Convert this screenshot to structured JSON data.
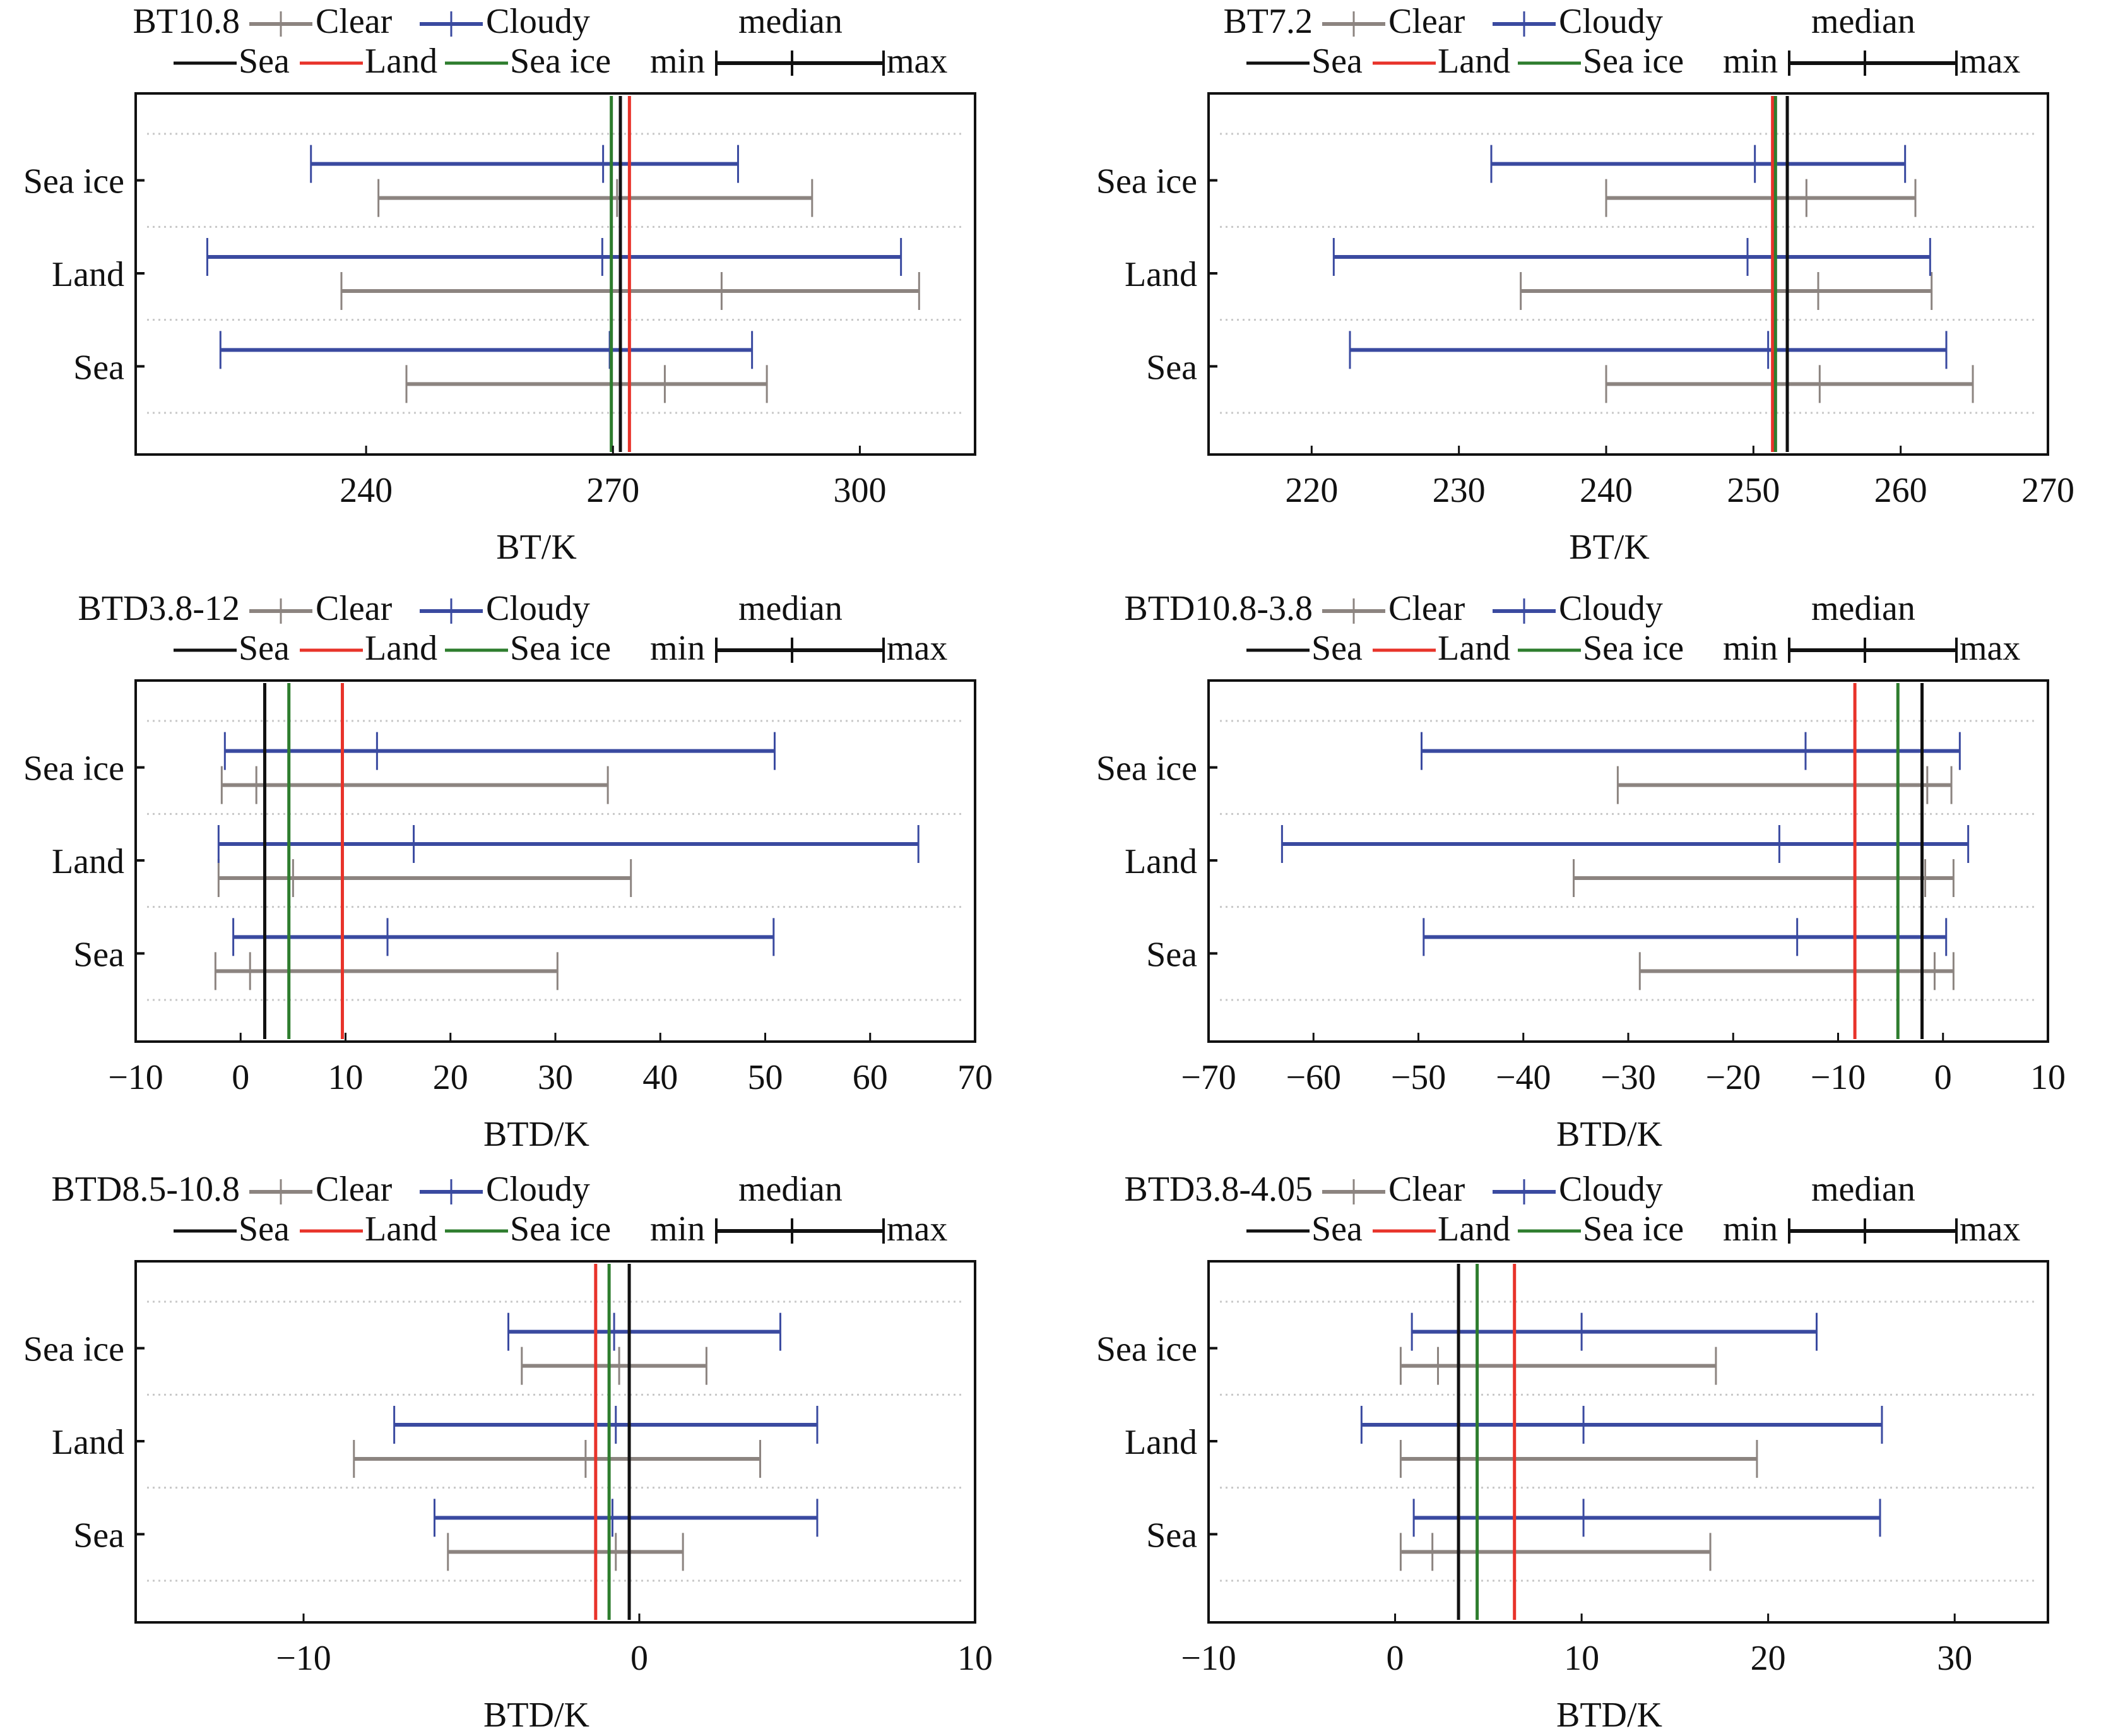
{
  "legend": {
    "clear_label": "Clear",
    "cloudy_label": "Cloudy",
    "median_label": "median",
    "min_label": "min",
    "max_label": "max",
    "sea_label": "Sea",
    "land_label": "Land",
    "seaice_label": "Sea ice"
  },
  "colors": {
    "clear": "#8c8480",
    "cloudy": "#3a4aa0",
    "sea": "#111111",
    "land": "#e8332a",
    "seaice": "#2e7d2e",
    "grid": "#c8c8c8"
  },
  "chart_data": [
    {
      "type": "errorbar",
      "title": "BT10.8",
      "xlabel": "BT/K",
      "ylabel": "",
      "xlim": [
        212,
        314
      ],
      "xticks": [
        240,
        270,
        300
      ],
      "categories": [
        "Sea",
        "Land",
        "Sea ice"
      ],
      "grid": true,
      "legend_position": "top",
      "series": [
        {
          "name": "Clear",
          "min": [
            244.9,
            237.0,
            241.5
          ],
          "median": [
            276.3,
            283.2,
            270.5
          ],
          "max": [
            288.7,
            307.2,
            294.2
          ]
        },
        {
          "name": "Cloudy",
          "min": [
            222.3,
            220.7,
            233.3
          ],
          "median": [
            269.6,
            268.7,
            268.8
          ],
          "max": [
            286.9,
            305.0,
            285.2
          ]
        }
      ],
      "reference_lines": [
        {
          "name": "Sea",
          "value": 270.9
        },
        {
          "name": "Land",
          "value": 272.0
        },
        {
          "name": "Sea ice",
          "value": 269.8
        }
      ]
    },
    {
      "type": "errorbar",
      "title": "BT7.2",
      "xlabel": "BT/K",
      "ylabel": "",
      "xlim": [
        213,
        270
      ],
      "xticks": [
        220,
        230,
        240,
        250,
        260,
        270
      ],
      "categories": [
        "Sea",
        "Land",
        "Sea ice"
      ],
      "grid": true,
      "legend_position": "top",
      "series": [
        {
          "name": "Clear",
          "min": [
            240.0,
            234.2,
            240.0
          ],
          "median": [
            254.5,
            254.4,
            253.6
          ],
          "max": [
            264.9,
            262.1,
            261.0
          ]
        },
        {
          "name": "Cloudy",
          "min": [
            222.6,
            221.5,
            232.2
          ],
          "median": [
            251.0,
            249.6,
            250.1
          ],
          "max": [
            263.1,
            262.0,
            260.3
          ]
        }
      ],
      "reference_lines": [
        {
          "name": "Sea",
          "value": 252.3
        },
        {
          "name": "Land",
          "value": 251.3
        },
        {
          "name": "Sea ice",
          "value": 251.5
        }
      ]
    },
    {
      "type": "errorbar",
      "title": "BTD3.8-12",
      "xlabel": "BTD/K",
      "ylabel": "",
      "xlim": [
        -10,
        70
      ],
      "xticks": [
        -10,
        0,
        10,
        20,
        30,
        40,
        50,
        60,
        70
      ],
      "categories": [
        "Sea",
        "Land",
        "Sea ice"
      ],
      "grid": true,
      "legend_position": "top",
      "series": [
        {
          "name": "Clear",
          "min": [
            -2.4,
            -2.1,
            -1.8
          ],
          "median": [
            0.9,
            5.0,
            1.5
          ],
          "max": [
            30.2,
            37.2,
            35.0
          ]
        },
        {
          "name": "Cloudy",
          "min": [
            -0.7,
            -2.1,
            -1.5
          ],
          "median": [
            14.0,
            16.5,
            13.0
          ],
          "max": [
            50.8,
            64.6,
            50.9
          ]
        }
      ],
      "reference_lines": [
        {
          "name": "Sea",
          "value": 2.3
        },
        {
          "name": "Land",
          "value": 9.7
        },
        {
          "name": "Sea ice",
          "value": 4.6
        }
      ]
    },
    {
      "type": "errorbar",
      "title": "BTD10.8-3.8",
      "xlabel": "BTD/K",
      "ylabel": "",
      "xlim": [
        -70,
        10
      ],
      "xticks": [
        -70,
        -60,
        -50,
        -40,
        -30,
        -20,
        -10,
        0,
        10
      ],
      "categories": [
        "Sea",
        "Land",
        "Sea ice"
      ],
      "grid": true,
      "legend_position": "top",
      "series": [
        {
          "name": "Clear",
          "min": [
            -28.9,
            -35.2,
            -31.0
          ],
          "median": [
            -0.8,
            -1.7,
            -1.5
          ],
          "max": [
            1.0,
            1.0,
            0.8
          ]
        },
        {
          "name": "Cloudy",
          "min": [
            -49.5,
            -63.0,
            -49.7
          ],
          "median": [
            -13.9,
            -15.6,
            -13.1
          ],
          "max": [
            0.3,
            2.4,
            1.6
          ]
        }
      ],
      "reference_lines": [
        {
          "name": "Sea",
          "value": -2.0
        },
        {
          "name": "Land",
          "value": -8.4
        },
        {
          "name": "Sea ice",
          "value": -4.3
        }
      ]
    },
    {
      "type": "errorbar",
      "title": "BTD8.5-10.8",
      "xlabel": "BTD/K",
      "ylabel": "",
      "xlim": [
        -15,
        10
      ],
      "xticks": [
        -10,
        0,
        10
      ],
      "categories": [
        "Sea",
        "Land",
        "Sea ice"
      ],
      "grid": true,
      "legend_position": "top",
      "series": [
        {
          "name": "Clear",
          "min": [
            -5.7,
            -8.5,
            -3.5
          ],
          "median": [
            -0.7,
            -1.6,
            -0.6
          ],
          "max": [
            1.3,
            3.6,
            2.0
          ]
        },
        {
          "name": "Cloudy",
          "min": [
            -6.1,
            -7.3,
            -3.9
          ],
          "median": [
            -0.8,
            -0.7,
            -0.75
          ],
          "max": [
            5.3,
            5.3,
            4.2
          ]
        }
      ],
      "reference_lines": [
        {
          "name": "Sea",
          "value": -0.3
        },
        {
          "name": "Land",
          "value": -1.3
        },
        {
          "name": "Sea ice",
          "value": -0.9
        }
      ]
    },
    {
      "type": "errorbar",
      "title": "BTD3.8-4.05",
      "xlabel": "BTD/K",
      "ylabel": "",
      "xlim": [
        -10,
        35
      ],
      "xticks": [
        -10,
        0,
        10,
        20,
        30
      ],
      "categories": [
        "Sea",
        "Land",
        "Sea ice"
      ],
      "grid": true,
      "legend_position": "top",
      "series": [
        {
          "name": "Clear",
          "min": [
            0.3,
            0.3,
            0.3
          ],
          "median": [
            2.0,
            3.4,
            2.3
          ],
          "max": [
            16.9,
            19.4,
            17.2
          ]
        },
        {
          "name": "Cloudy",
          "min": [
            1.0,
            -1.8,
            0.9
          ],
          "median": [
            10.1,
            10.1,
            10.0
          ],
          "max": [
            26.0,
            26.1,
            22.6
          ]
        }
      ],
      "reference_lines": [
        {
          "name": "Sea",
          "value": 3.4
        },
        {
          "name": "Land",
          "value": 6.4
        },
        {
          "name": "Sea ice",
          "value": 4.4
        }
      ]
    }
  ]
}
